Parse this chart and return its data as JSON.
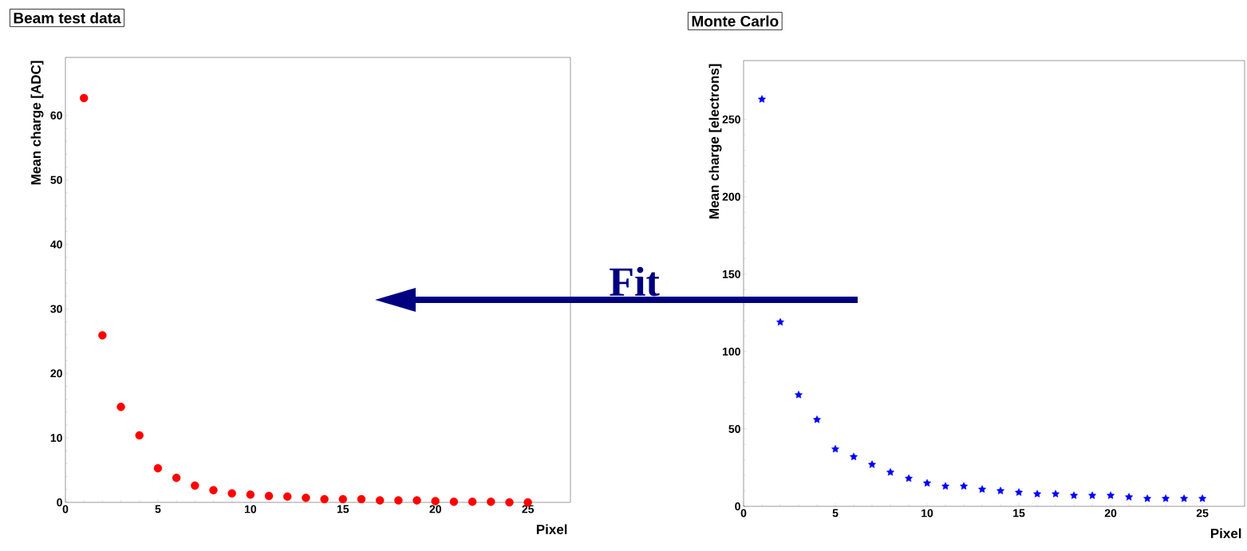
{
  "chart_data": [
    {
      "type": "scatter",
      "title": "Beam test data",
      "xlabel": "Pixel",
      "ylabel": "Mean charge [ADC]",
      "x": [
        1,
        2,
        3,
        4,
        5,
        6,
        7,
        8,
        9,
        10,
        11,
        12,
        13,
        14,
        15,
        16,
        17,
        18,
        19,
        20,
        21,
        22,
        23,
        24,
        25
      ],
      "series": [
        {
          "color": "#ff0000",
          "values": [
            62.7,
            25.9,
            14.8,
            10.4,
            5.3,
            3.8,
            2.6,
            1.9,
            1.4,
            1.2,
            1.0,
            0.9,
            0.7,
            0.5,
            0.5,
            0.5,
            0.3,
            0.3,
            0.3,
            0.2,
            0.1,
            0.1,
            0.1,
            0.0,
            0.0
          ]
        }
      ],
      "marker": "circle",
      "xlim": [
        0,
        27.3
      ],
      "ylim": [
        0,
        69
      ],
      "xticks": [
        0,
        5,
        10,
        15,
        20,
        25
      ],
      "yticks": [
        0,
        10,
        20,
        30,
        40,
        50,
        60
      ],
      "grid": false,
      "legend": false
    },
    {
      "type": "scatter",
      "title": "Monte Carlo",
      "xlabel": "Pixel",
      "ylabel": "Mean charge [electrons]",
      "x": [
        1,
        2,
        3,
        4,
        5,
        6,
        7,
        8,
        9,
        10,
        11,
        12,
        13,
        14,
        15,
        16,
        17,
        18,
        19,
        20,
        21,
        22,
        23,
        24,
        25
      ],
      "series": [
        {
          "color": "#0000ff",
          "values": [
            263,
            119,
            72,
            56,
            37,
            32,
            27,
            22,
            18,
            15,
            13,
            13,
            11,
            10,
            9,
            8,
            8,
            7,
            7,
            7,
            6,
            5,
            5,
            5,
            5
          ]
        }
      ],
      "marker": "star",
      "xlim": [
        0,
        27.3
      ],
      "ylim": [
        0,
        288
      ],
      "xticks": [
        0,
        5,
        10,
        15,
        20,
        25
      ],
      "yticks": [
        0,
        50,
        100,
        150,
        200,
        250
      ],
      "grid": false,
      "legend": false,
      "annotations": [
        "Fit"
      ]
    }
  ]
}
